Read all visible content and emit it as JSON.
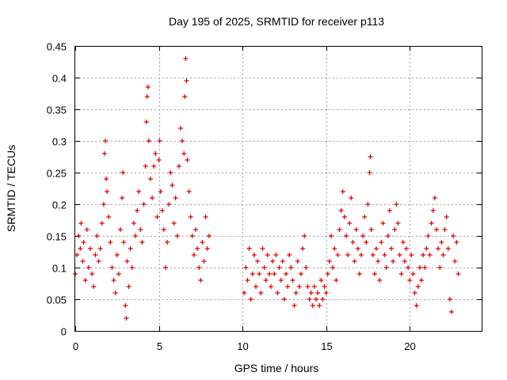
{
  "chart_data": {
    "type": "scatter",
    "title": "Day 195 of 2025, SRMTID for receiver p113",
    "xlabel": "GPS time / hours",
    "ylabel": "SRMTID / TECUs",
    "xlim": [
      0,
      24.3
    ],
    "ylim": [
      0,
      0.45
    ],
    "x_ticks": [
      0,
      5,
      10,
      15,
      20
    ],
    "x_tick_labels": [
      "0",
      "5",
      "10",
      "15",
      "20"
    ],
    "y_ticks": [
      0,
      0.05,
      0.1,
      0.15,
      0.2,
      0.25,
      0.3,
      0.35,
      0.4,
      0.45
    ],
    "y_tick_labels": [
      "0",
      "0.05",
      "0.1",
      "0.15",
      "0.2",
      "0.25",
      "0.3",
      "0.35",
      "0.4",
      "0.45"
    ],
    "grid": true,
    "marker": "+",
    "marker_color": "#dd0000",
    "series": [
      {
        "name": "SRMTID",
        "points": [
          [
            0.0,
            0.09
          ],
          [
            0.1,
            0.12
          ],
          [
            0.2,
            0.15
          ],
          [
            0.3,
            0.13
          ],
          [
            0.35,
            0.17
          ],
          [
            0.45,
            0.11
          ],
          [
            0.5,
            0.14
          ],
          [
            0.6,
            0.08
          ],
          [
            0.7,
            0.16
          ],
          [
            0.8,
            0.1
          ],
          [
            0.9,
            0.13
          ],
          [
            1.0,
            0.09
          ],
          [
            1.1,
            0.07
          ],
          [
            1.2,
            0.12
          ],
          [
            1.3,
            0.15
          ],
          [
            1.4,
            0.11
          ],
          [
            1.5,
            0.13
          ],
          [
            1.6,
            0.17
          ],
          [
            1.7,
            0.2
          ],
          [
            1.75,
            0.28
          ],
          [
            1.8,
            0.3
          ],
          [
            1.85,
            0.24
          ],
          [
            1.9,
            0.22
          ],
          [
            2.0,
            0.18
          ],
          [
            2.1,
            0.14
          ],
          [
            2.2,
            0.1
          ],
          [
            2.3,
            0.08
          ],
          [
            2.4,
            0.06
          ],
          [
            2.5,
            0.12
          ],
          [
            2.6,
            0.09
          ],
          [
            2.7,
            0.16
          ],
          [
            2.8,
            0.21
          ],
          [
            2.85,
            0.25
          ],
          [
            2.9,
            0.14
          ],
          [
            3.0,
            0.04
          ],
          [
            3.05,
            0.02
          ],
          [
            3.1,
            0.11
          ],
          [
            3.2,
            0.07
          ],
          [
            3.3,
            0.13
          ],
          [
            3.4,
            0.1
          ],
          [
            3.5,
            0.17
          ],
          [
            3.6,
            0.15
          ],
          [
            3.7,
            0.19
          ],
          [
            3.8,
            0.22
          ],
          [
            3.9,
            0.16
          ],
          [
            4.0,
            0.14
          ],
          [
            4.1,
            0.2
          ],
          [
            4.2,
            0.26
          ],
          [
            4.25,
            0.33
          ],
          [
            4.3,
            0.37
          ],
          [
            4.35,
            0.385
          ],
          [
            4.4,
            0.3
          ],
          [
            4.5,
            0.24
          ],
          [
            4.6,
            0.21
          ],
          [
            4.7,
            0.26
          ],
          [
            4.8,
            0.28
          ],
          [
            4.9,
            0.18
          ],
          [
            5.0,
            0.27
          ],
          [
            5.05,
            0.3
          ],
          [
            5.1,
            0.22
          ],
          [
            5.2,
            0.19
          ],
          [
            5.3,
            0.16
          ],
          [
            5.4,
            0.1
          ],
          [
            5.5,
            0.14
          ],
          [
            5.6,
            0.2
          ],
          [
            5.7,
            0.25
          ],
          [
            5.8,
            0.23
          ],
          [
            5.9,
            0.17
          ],
          [
            6.0,
            0.21
          ],
          [
            6.1,
            0.15
          ],
          [
            6.2,
            0.26
          ],
          [
            6.3,
            0.32
          ],
          [
            6.4,
            0.3
          ],
          [
            6.5,
            0.28
          ],
          [
            6.55,
            0.37
          ],
          [
            6.6,
            0.43
          ],
          [
            6.65,
            0.395
          ],
          [
            6.7,
            0.27
          ],
          [
            6.8,
            0.22
          ],
          [
            6.9,
            0.18
          ],
          [
            7.0,
            0.15
          ],
          [
            7.1,
            0.12
          ],
          [
            7.2,
            0.16
          ],
          [
            7.3,
            0.13
          ],
          [
            7.4,
            0.1
          ],
          [
            7.5,
            0.08
          ],
          [
            7.6,
            0.14
          ],
          [
            7.7,
            0.11
          ],
          [
            7.8,
            0.18
          ],
          [
            7.9,
            0.13
          ],
          [
            8.0,
            0.15
          ],
          [
            10.1,
            0.06
          ],
          [
            10.2,
            0.1
          ],
          [
            10.3,
            0.08
          ],
          [
            10.4,
            0.13
          ],
          [
            10.5,
            0.05
          ],
          [
            10.6,
            0.09
          ],
          [
            10.7,
            0.12
          ],
          [
            10.8,
            0.07
          ],
          [
            10.9,
            0.11
          ],
          [
            11.0,
            0.09
          ],
          [
            11.1,
            0.06
          ],
          [
            11.2,
            0.13
          ],
          [
            11.3,
            0.1
          ],
          [
            11.4,
            0.08
          ],
          [
            11.5,
            0.12
          ],
          [
            11.6,
            0.09
          ],
          [
            11.7,
            0.07
          ],
          [
            11.8,
            0.11
          ],
          [
            11.9,
            0.09
          ],
          [
            12.0,
            0.12
          ],
          [
            12.1,
            0.06
          ],
          [
            12.2,
            0.1
          ],
          [
            12.3,
            0.08
          ],
          [
            12.4,
            0.11
          ],
          [
            12.5,
            0.05
          ],
          [
            12.6,
            0.09
          ],
          [
            12.7,
            0.07
          ],
          [
            12.8,
            0.12
          ],
          [
            12.9,
            0.1
          ],
          [
            13.0,
            0.08
          ],
          [
            13.1,
            0.04
          ],
          [
            13.2,
            0.06
          ],
          [
            13.3,
            0.11
          ],
          [
            13.4,
            0.07
          ],
          [
            13.5,
            0.09
          ],
          [
            13.6,
            0.13
          ],
          [
            13.7,
            0.15
          ],
          [
            13.8,
            0.1
          ],
          [
            13.9,
            0.07
          ],
          [
            14.0,
            0.05
          ],
          [
            14.1,
            0.06
          ],
          [
            14.2,
            0.04
          ],
          [
            14.3,
            0.07
          ],
          [
            14.4,
            0.05
          ],
          [
            14.5,
            0.06
          ],
          [
            14.6,
            0.04
          ],
          [
            14.7,
            0.08
          ],
          [
            14.8,
            0.05
          ],
          [
            14.9,
            0.07
          ],
          [
            15.0,
            0.06
          ],
          [
            15.1,
            0.09
          ],
          [
            15.2,
            0.11
          ],
          [
            15.3,
            0.15
          ],
          [
            15.4,
            0.1
          ],
          [
            15.5,
            0.13
          ],
          [
            15.6,
            0.08
          ],
          [
            15.7,
            0.12
          ],
          [
            15.8,
            0.16
          ],
          [
            15.9,
            0.19
          ],
          [
            16.0,
            0.22
          ],
          [
            16.1,
            0.18
          ],
          [
            16.2,
            0.15
          ],
          [
            16.3,
            0.12
          ],
          [
            16.4,
            0.17
          ],
          [
            16.5,
            0.21
          ],
          [
            16.6,
            0.14
          ],
          [
            16.7,
            0.11
          ],
          [
            16.8,
            0.16
          ],
          [
            16.9,
            0.13
          ],
          [
            17.0,
            0.09
          ],
          [
            17.1,
            0.12
          ],
          [
            17.2,
            0.15
          ],
          [
            17.3,
            0.18
          ],
          [
            17.4,
            0.14
          ],
          [
            17.5,
            0.2
          ],
          [
            17.6,
            0.25
          ],
          [
            17.65,
            0.275
          ],
          [
            17.7,
            0.16
          ],
          [
            17.8,
            0.12
          ],
          [
            17.9,
            0.09
          ],
          [
            18.0,
            0.13
          ],
          [
            18.1,
            0.11
          ],
          [
            18.2,
            0.08
          ],
          [
            18.3,
            0.14
          ],
          [
            18.4,
            0.17
          ],
          [
            18.5,
            0.12
          ],
          [
            18.6,
            0.1
          ],
          [
            18.7,
            0.15
          ],
          [
            18.8,
            0.19
          ],
          [
            18.9,
            0.13
          ],
          [
            19.0,
            0.11
          ],
          [
            19.1,
            0.16
          ],
          [
            19.2,
            0.2
          ],
          [
            19.3,
            0.17
          ],
          [
            19.4,
            0.12
          ],
          [
            19.5,
            0.09
          ],
          [
            19.6,
            0.14
          ],
          [
            19.7,
            0.11
          ],
          [
            19.8,
            0.13
          ],
          [
            19.9,
            0.1
          ],
          [
            20.0,
            0.08
          ],
          [
            20.1,
            0.12
          ],
          [
            20.2,
            0.09
          ],
          [
            20.3,
            0.06
          ],
          [
            20.4,
            0.04
          ],
          [
            20.5,
            0.07
          ],
          [
            20.6,
            0.1
          ],
          [
            20.7,
            0.08
          ],
          [
            20.8,
            0.12
          ],
          [
            20.9,
            0.1
          ],
          [
            21.0,
            0.13
          ],
          [
            21.1,
            0.15
          ],
          [
            21.2,
            0.12
          ],
          [
            21.3,
            0.17
          ],
          [
            21.4,
            0.19
          ],
          [
            21.5,
            0.21
          ],
          [
            21.6,
            0.16
          ],
          [
            21.7,
            0.13
          ],
          [
            21.8,
            0.1
          ],
          [
            21.9,
            0.14
          ],
          [
            22.0,
            0.12
          ],
          [
            22.1,
            0.16
          ],
          [
            22.2,
            0.18
          ],
          [
            22.3,
            0.13
          ],
          [
            22.4,
            0.05
          ],
          [
            22.5,
            0.03
          ],
          [
            22.6,
            0.15
          ],
          [
            22.7,
            0.11
          ],
          [
            22.8,
            0.14
          ],
          [
            22.9,
            0.09
          ]
        ]
      }
    ]
  }
}
